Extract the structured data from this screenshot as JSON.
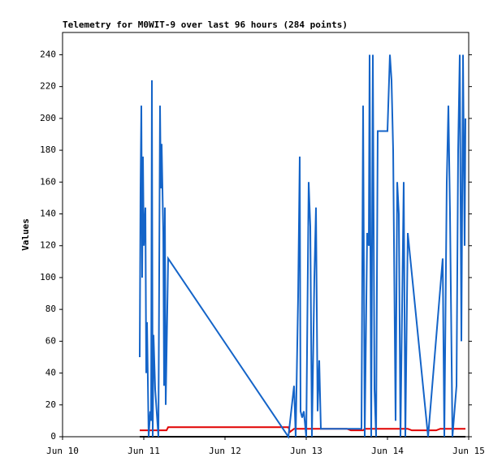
{
  "chart_data": {
    "type": "line",
    "title": "Telemetry for M0WIT-9 over last 96 hours (284 points)",
    "ylabel": "Values",
    "xlim": [
      10,
      15
    ],
    "xticks": [
      {
        "value": 10,
        "label": "Jun 10"
      },
      {
        "value": 11,
        "label": "Jun 11"
      },
      {
        "value": 12,
        "label": "Jun 12"
      },
      {
        "value": 13,
        "label": "Jun 13"
      },
      {
        "value": 14,
        "label": "Jun 14"
      },
      {
        "value": 15,
        "label": "Jun 15"
      }
    ],
    "ylim": [
      0,
      254
    ],
    "yticks": [
      0,
      20,
      40,
      60,
      80,
      100,
      120,
      140,
      160,
      180,
      200,
      220,
      240
    ],
    "grid": false,
    "series": [
      {
        "name": "blue",
        "color": "#1464c8",
        "x": [
          10.95,
          10.96,
          10.97,
          10.98,
          10.99,
          11.0,
          11.02,
          11.03,
          11.04,
          11.06,
          11.08,
          11.09,
          11.1,
          11.11,
          11.12,
          11.14,
          11.18,
          11.2,
          11.21,
          11.22,
          11.24,
          11.25,
          11.26,
          11.27,
          11.3,
          12.78,
          12.85,
          12.87,
          12.9,
          12.92,
          12.93,
          12.95,
          12.97,
          13.0,
          13.03,
          13.05,
          13.07,
          13.1,
          13.12,
          13.14,
          13.16,
          13.18,
          13.68,
          13.7,
          13.72,
          13.75,
          13.77,
          13.78,
          13.8,
          13.82,
          13.84,
          13.86,
          13.88,
          14.0,
          14.03,
          14.05,
          14.07,
          14.1,
          14.12,
          14.14,
          14.16,
          14.2,
          14.22,
          14.25,
          14.5,
          14.68,
          14.7,
          14.73,
          14.75,
          14.77,
          14.8,
          14.85,
          14.87,
          14.89,
          14.91,
          14.93,
          14.95,
          14.96
        ],
        "values": [
          50,
          156,
          208,
          100,
          176,
          120,
          144,
          40,
          72,
          0,
          16,
          10,
          224,
          0,
          64,
          30,
          0,
          208,
          156,
          184,
          128,
          32,
          144,
          20,
          112,
          0,
          32,
          0,
          88,
          176,
          16,
          12,
          16,
          0,
          160,
          132,
          0,
          100,
          144,
          16,
          48,
          5,
          5,
          208,
          0,
          128,
          120,
          240,
          0,
          240,
          30,
          0,
          192,
          192,
          240,
          224,
          180,
          10,
          160,
          140,
          0,
          160,
          0,
          128,
          0,
          112,
          0,
          160,
          208,
          140,
          0,
          32,
          180,
          240,
          60,
          240,
          120,
          200
        ]
      },
      {
        "name": "red",
        "color": "#e00000",
        "x": [
          10.95,
          11.28,
          11.3,
          12.78,
          12.8,
          12.85,
          13.5,
          13.55,
          13.7,
          13.72,
          14.25,
          14.3,
          14.6,
          14.65,
          14.96
        ],
        "values": [
          4,
          4,
          6,
          6,
          3,
          5,
          5,
          4,
          4,
          5,
          5,
          4,
          4,
          5,
          5
        ]
      },
      {
        "name": "black",
        "color": "#000000",
        "x": [
          10.95,
          14.96
        ],
        "values": [
          0,
          0
        ]
      }
    ]
  }
}
